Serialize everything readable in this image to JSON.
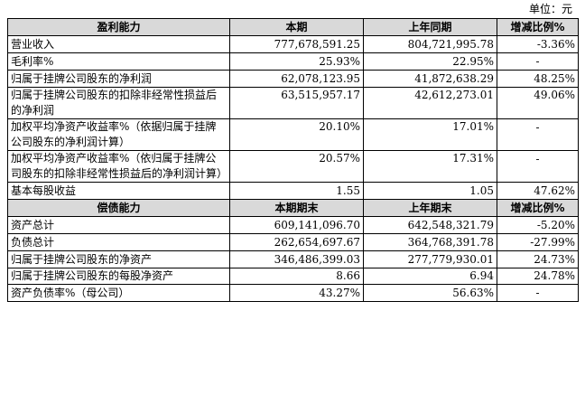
{
  "unit_label": "单位：元",
  "profit_section": {
    "headers": [
      "盈利能力",
      "本期",
      "上年同期",
      "增减比例%"
    ],
    "rows": [
      {
        "label": "营业收入",
        "current": "777,678,591.25",
        "prior": "804,721,995.78",
        "change": "-3.36%"
      },
      {
        "label": "毛利率%",
        "current": "25.93%",
        "prior": "22.95%",
        "change": "-"
      },
      {
        "label": "归属于挂牌公司股东的净利润",
        "current": "62,078,123.95",
        "prior": "41,872,638.29",
        "change": "48.25%"
      },
      {
        "label": "归属于挂牌公司股东的扣除非经常性损益后的净利润",
        "current": "63,515,957.17",
        "prior": "42,612,273.01",
        "change": "49.06%"
      },
      {
        "label": "加权平均净资产收益率%（依据归属于挂牌公司股东的净利润计算）",
        "current": "20.10%",
        "prior": "17.01%",
        "change": "-"
      },
      {
        "label": "加权平均净资产收益率%（依归属于挂牌公司股东的扣除非经常性损益后的净利润计算）",
        "current": "20.57%",
        "prior": "17.31%",
        "change": "-"
      },
      {
        "label": "基本每股收益",
        "current": "1.55",
        "prior": "1.05",
        "change": "47.62%"
      }
    ]
  },
  "debt_section": {
    "headers": [
      "偿债能力",
      "本期期末",
      "上年期末",
      "增减比例%"
    ],
    "rows": [
      {
        "label": "资产总计",
        "current": "609,141,096.70",
        "prior": "642,548,321.79",
        "change": "-5.20%"
      },
      {
        "label": "负债总计",
        "current": "262,654,697.67",
        "prior": "364,768,391.78",
        "change": "-27.99%"
      },
      {
        "label": "归属于挂牌公司股东的净资产",
        "current": "346,486,399.03",
        "prior": "277,779,930.01",
        "change": "24.73%"
      },
      {
        "label": "归属于挂牌公司股东的每股净资产",
        "current": "8.66",
        "prior": "6.94",
        "change": "24.78%"
      },
      {
        "label": "资产负债率%（母公司）",
        "current": "43.27%",
        "prior": "56.63%",
        "change": "-"
      }
    ]
  }
}
